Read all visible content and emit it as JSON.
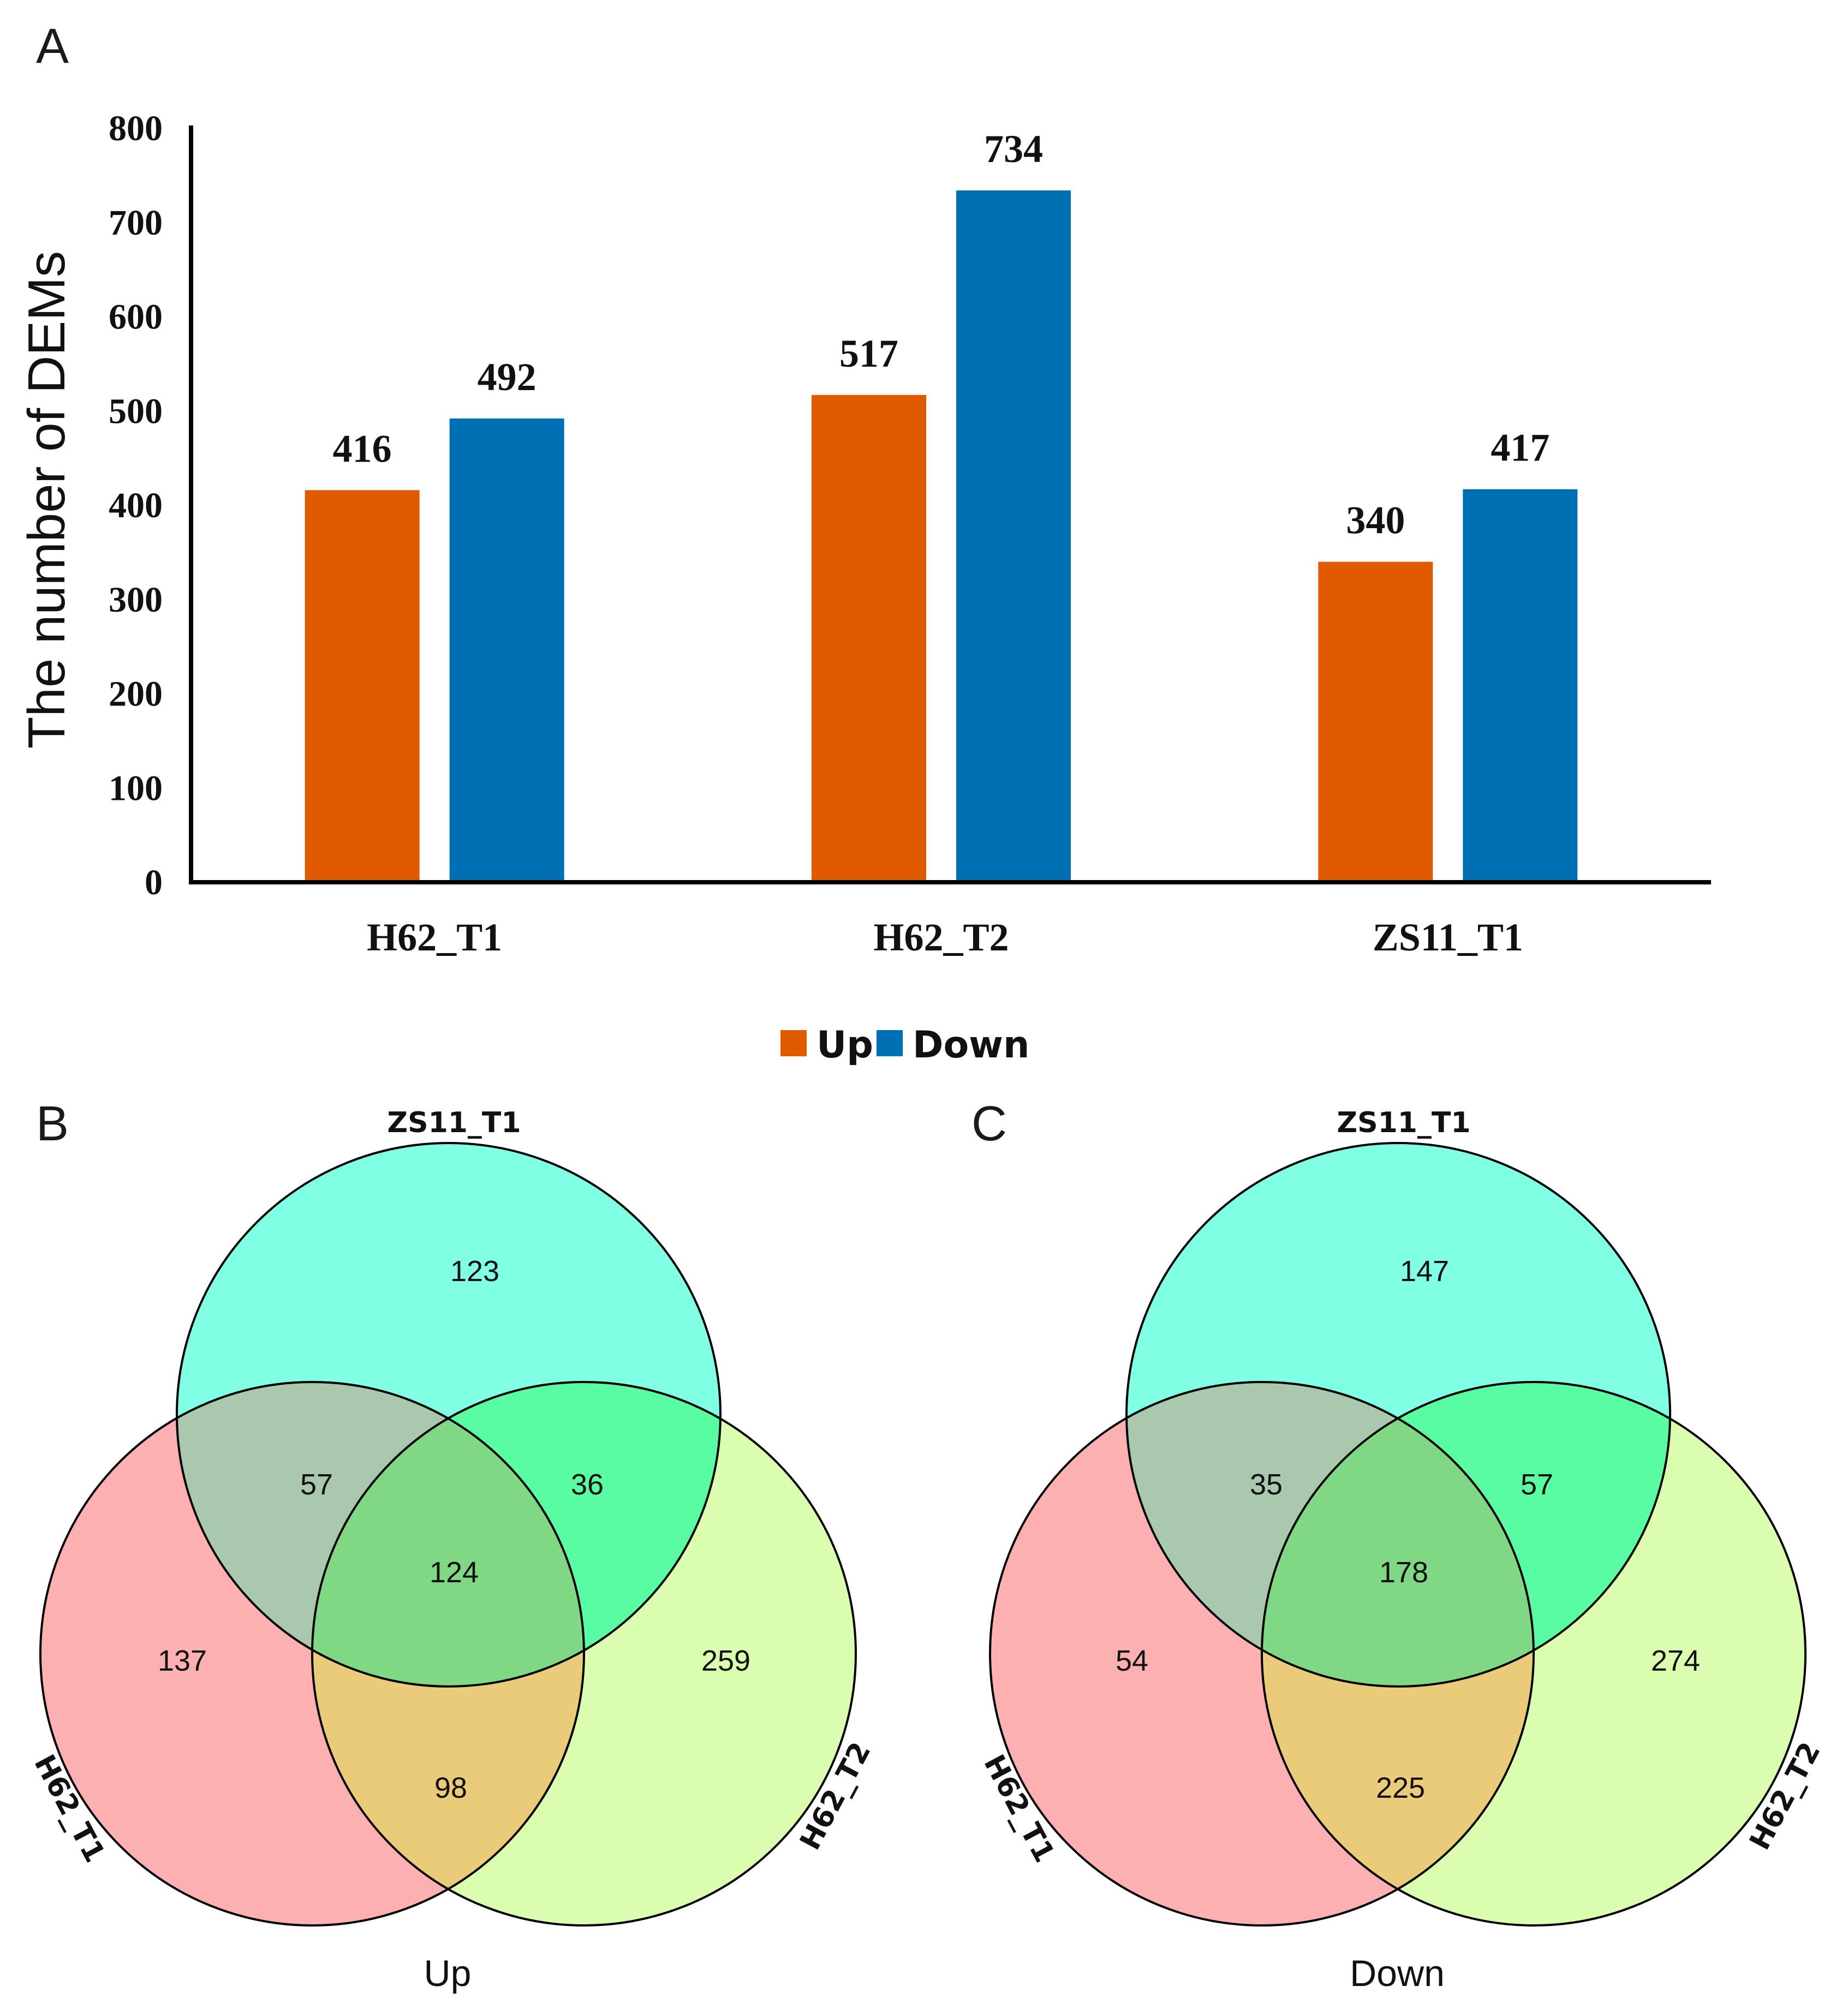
{
  "chart_data": [
    {
      "panel": "A",
      "type": "bar",
      "title": "",
      "ylabel": "The number of DEMs",
      "xlabel": "",
      "ylim": [
        0,
        800
      ],
      "yticks": [
        0,
        100,
        200,
        300,
        400,
        500,
        600,
        700,
        800
      ],
      "categories": [
        "H62_T1",
        "H62_T2",
        "ZS11_T1"
      ],
      "series": [
        {
          "name": "Up",
          "color": "#E05A00",
          "values": [
            416,
            517,
            340
          ]
        },
        {
          "name": "Down",
          "color": "#0070B5",
          "values": [
            492,
            734,
            417
          ]
        }
      ],
      "legend_position": "bottom-center",
      "grid": false
    },
    {
      "panel": "B",
      "type": "venn",
      "title": "Up",
      "sets": [
        "ZS11_T1",
        "H62_T1",
        "H62_T2"
      ],
      "regions": {
        "ZS11_T1_only": "123",
        "H62_T1_only": "137",
        "H62_T2_only": "259",
        "ZS11_T1_and_H62_T1": "57",
        "ZS11_T1_and_H62_T2": "36",
        "H62_T1_and_H62_T2": "98",
        "all_three": "124"
      }
    },
    {
      "panel": "C",
      "type": "venn",
      "title": "Down",
      "sets": [
        "ZS11_T1",
        "H62_T1",
        "H62_T2"
      ],
      "regions": {
        "ZS11_T1_only": "147",
        "H62_T1_only": "54",
        "H62_T2_only": "274",
        "ZS11_T1_and_H62_T1": "35",
        "ZS11_T1_and_H62_T2": "57",
        "H62_T1_and_H62_T2": "225",
        "all_three": "178"
      }
    }
  ],
  "venn_colors": {
    "ZS11_T1": "#80FFE5",
    "H62_T1": "#FCB0B1",
    "H62_T2": "#DAFDB0",
    "ZS11_T1_and_H62_T1": "#A9C8AD",
    "ZS11_T1_and_H62_T2": "#5AFCA3",
    "H62_T1_and_H62_T2": "#EACB7A",
    "all_three": "#80D885"
  }
}
